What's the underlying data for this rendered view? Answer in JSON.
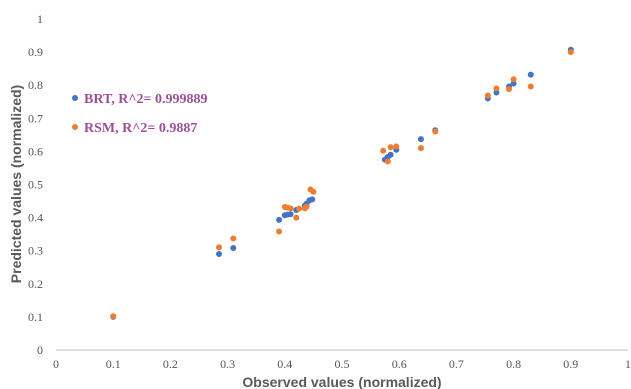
{
  "chart_data": {
    "type": "scatter",
    "xlabel": "Observed values (normalized)",
    "ylabel": "Predicted values (normalized)",
    "xlim": [
      0,
      1
    ],
    "ylim": [
      0,
      1
    ],
    "xticks": [
      "0",
      "0.1",
      "0.2",
      "0.3",
      "0.4",
      "0.5",
      "0.6",
      "0.7",
      "0.8",
      "0.9",
      "1"
    ],
    "yticks": [
      "0",
      "0.1",
      "0.2",
      "0.3",
      "0.4",
      "0.5",
      "0.6",
      "0.7",
      "0.8",
      "0.9",
      "1"
    ],
    "grid": false,
    "legend_position": "left",
    "series": [
      {
        "name": "BRT, R^2= 0.999889",
        "color": "#4472c4",
        "points": [
          [
            0.1,
            0.1
          ],
          [
            0.285,
            0.29
          ],
          [
            0.31,
            0.308
          ],
          [
            0.39,
            0.393
          ],
          [
            0.4,
            0.407
          ],
          [
            0.405,
            0.409
          ],
          [
            0.41,
            0.41
          ],
          [
            0.42,
            0.423
          ],
          [
            0.435,
            0.436
          ],
          [
            0.438,
            0.442
          ],
          [
            0.443,
            0.452
          ],
          [
            0.448,
            0.455
          ],
          [
            0.575,
            0.575
          ],
          [
            0.58,
            0.583
          ],
          [
            0.585,
            0.59
          ],
          [
            0.595,
            0.605
          ],
          [
            0.638,
            0.637
          ],
          [
            0.663,
            0.664
          ],
          [
            0.755,
            0.76
          ],
          [
            0.77,
            0.778
          ],
          [
            0.792,
            0.796
          ],
          [
            0.8,
            0.805
          ],
          [
            0.83,
            0.832
          ],
          [
            0.9,
            0.907
          ]
        ]
      },
      {
        "name": "RSM, R^2= 0.9887",
        "color": "#ed7d31",
        "points": [
          [
            0.1,
            0.102
          ],
          [
            0.285,
            0.31
          ],
          [
            0.31,
            0.337
          ],
          [
            0.39,
            0.358
          ],
          [
            0.4,
            0.432
          ],
          [
            0.405,
            0.43
          ],
          [
            0.41,
            0.428
          ],
          [
            0.42,
            0.4
          ],
          [
            0.425,
            0.427
          ],
          [
            0.435,
            0.428
          ],
          [
            0.438,
            0.433
          ],
          [
            0.445,
            0.485
          ],
          [
            0.45,
            0.478
          ],
          [
            0.572,
            0.602
          ],
          [
            0.58,
            0.57
          ],
          [
            0.585,
            0.613
          ],
          [
            0.595,
            0.615
          ],
          [
            0.638,
            0.61
          ],
          [
            0.663,
            0.66
          ],
          [
            0.755,
            0.769
          ],
          [
            0.77,
            0.79
          ],
          [
            0.792,
            0.788
          ],
          [
            0.8,
            0.818
          ],
          [
            0.83,
            0.796
          ],
          [
            0.9,
            0.9
          ]
        ]
      }
    ]
  }
}
